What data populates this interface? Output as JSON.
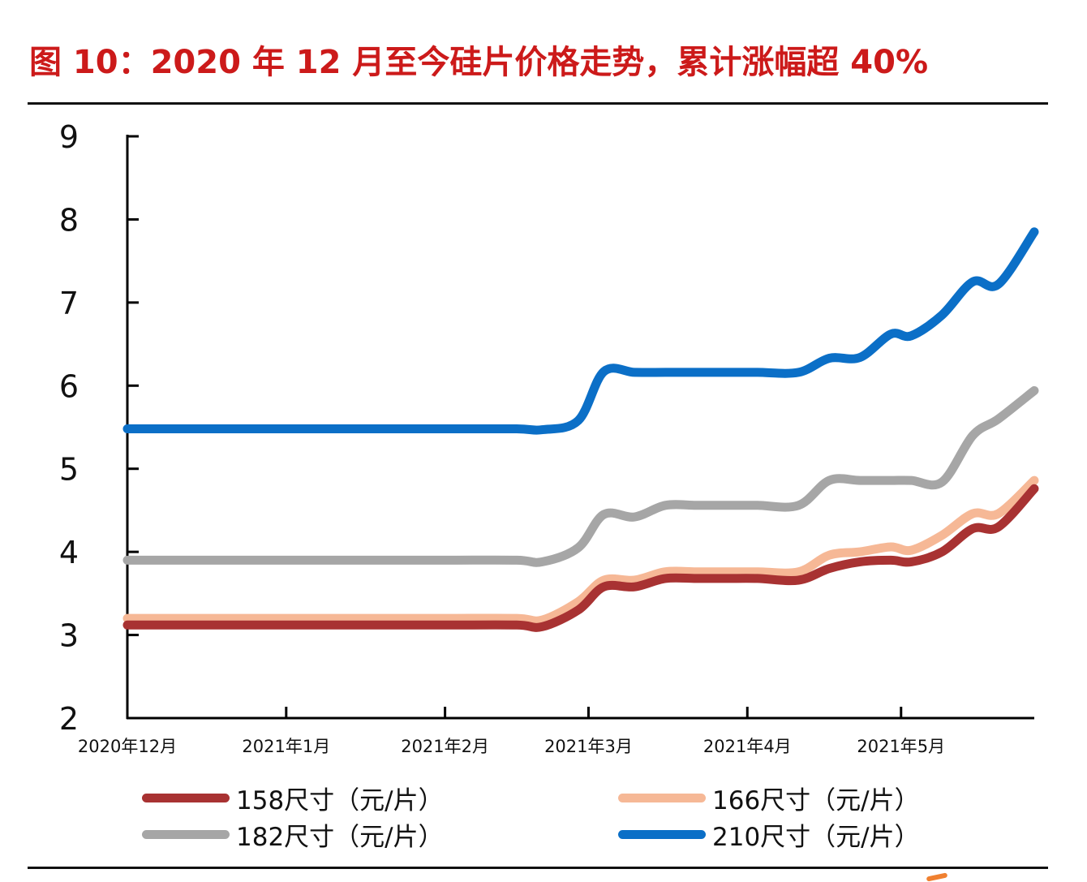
{
  "title": "图 10：2020 年 12 月至今硅片价格走势，累计涨幅超 40%",
  "chart_data": {
    "type": "line",
    "title": "图 10：2020 年 12 月至今硅片价格走势，累计涨幅超 40%",
    "xlabel": "",
    "ylabel": "",
    "ylim": [
      2,
      9
    ],
    "yticks": [
      "2",
      "3",
      "4",
      "5",
      "6",
      "7",
      "8",
      "9"
    ],
    "xticks": [
      "2020年12月",
      "2021年1月",
      "2021年2月",
      "2021年3月",
      "2021年4月",
      "2021年5月"
    ],
    "x": [
      "2020-12-01",
      "2020-12-15",
      "2021-01-01",
      "2021-01-15",
      "2021-02-01",
      "2021-02-15",
      "2021-02-20",
      "2021-02-27",
      "2021-03-04",
      "2021-03-10",
      "2021-03-16",
      "2021-03-22",
      "2021-03-28",
      "2021-04-03",
      "2021-04-11",
      "2021-04-17",
      "2021-04-23",
      "2021-04-29",
      "2021-05-03",
      "2021-05-09",
      "2021-05-15",
      "2021-05-20",
      "2021-05-27"
    ],
    "series": [
      {
        "name": "158尺寸（元/片）",
        "color": "#a83232",
        "values": [
          3.12,
          3.12,
          3.12,
          3.12,
          3.12,
          3.12,
          3.1,
          3.3,
          3.58,
          3.58,
          3.68,
          3.68,
          3.68,
          3.68,
          3.66,
          3.8,
          3.88,
          3.9,
          3.88,
          4.0,
          4.28,
          4.3,
          4.76
        ]
      },
      {
        "name": "166尺寸（元/片）",
        "color": "#f6b896",
        "values": [
          3.2,
          3.2,
          3.2,
          3.2,
          3.2,
          3.2,
          3.18,
          3.4,
          3.66,
          3.66,
          3.76,
          3.76,
          3.76,
          3.76,
          3.76,
          3.96,
          4.0,
          4.06,
          4.02,
          4.2,
          4.46,
          4.46,
          4.86
        ]
      },
      {
        "name": "182尺寸（元/片）",
        "color": "#a6a6a6",
        "values": [
          3.9,
          3.9,
          3.9,
          3.9,
          3.9,
          3.9,
          3.88,
          4.05,
          4.45,
          4.42,
          4.56,
          4.56,
          4.56,
          4.56,
          4.56,
          4.86,
          4.86,
          4.86,
          4.86,
          4.84,
          5.4,
          5.6,
          5.94
        ]
      },
      {
        "name": "210尺寸（元/片）",
        "color": "#0b6fc7",
        "values": [
          5.48,
          5.48,
          5.48,
          5.48,
          5.48,
          5.48,
          5.47,
          5.58,
          6.17,
          6.16,
          6.16,
          6.16,
          6.16,
          6.16,
          6.16,
          6.33,
          6.34,
          6.62,
          6.6,
          6.85,
          7.25,
          7.22,
          7.85
        ]
      }
    ],
    "legend": "bottom",
    "grid": false
  }
}
